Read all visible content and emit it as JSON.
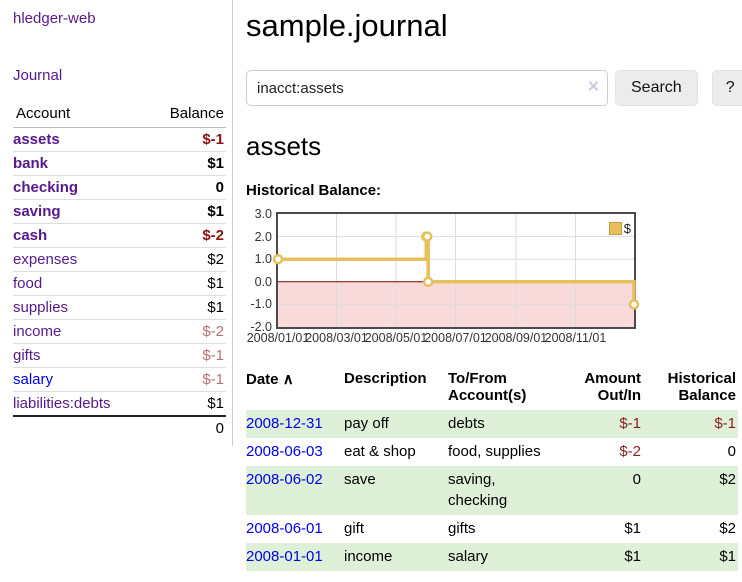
{
  "app": {
    "title": "hledger-web"
  },
  "sidebar": {
    "journal_link": "Journal",
    "accounts": {
      "headers": {
        "account": "Account",
        "balance": "Balance"
      },
      "rows": [
        {
          "name": "assets",
          "balance": "$-1"
        },
        {
          "name": "bank",
          "balance": "$1"
        },
        {
          "name": "checking",
          "balance": "0"
        },
        {
          "name": "saving",
          "balance": "$1"
        },
        {
          "name": "cash",
          "balance": "$-2"
        },
        {
          "name": "expenses",
          "balance": "$2"
        },
        {
          "name": "food",
          "balance": "$1"
        },
        {
          "name": "supplies",
          "balance": "$1"
        },
        {
          "name": "income",
          "balance": "$-2"
        },
        {
          "name": "gifts",
          "balance": "$-1"
        },
        {
          "name": "salary",
          "balance": "$-1"
        },
        {
          "name": "liabilities:debts",
          "balance": "$1"
        }
      ],
      "total": "0"
    }
  },
  "main": {
    "title": "sample.journal",
    "search": {
      "value": "inacct:assets",
      "clear_icon": "×",
      "button_label": "Search",
      "help_label": "?"
    },
    "account_heading": "assets",
    "chart_title": "Historical Balance:",
    "register": {
      "headers": {
        "date": "Date",
        "sort_icon": "∧",
        "description": "Description",
        "tofrom": "To/From Account(s)",
        "amount": "Amount Out/In",
        "balance": "Historical Balance"
      },
      "rows": [
        {
          "date": "2008-12-31",
          "description": "pay off",
          "tofrom": "debts",
          "amount": "$-1",
          "balance": "$-1"
        },
        {
          "date": "2008-06-03",
          "description": "eat & shop",
          "tofrom": "food, supplies",
          "amount": "$-2",
          "balance": "0"
        },
        {
          "date": "2008-06-02",
          "description": "save",
          "tofrom": "saving, checking",
          "amount": "0",
          "balance": "$2"
        },
        {
          "date": "2008-06-01",
          "description": "gift",
          "tofrom": "gifts",
          "amount": "$1",
          "balance": "$2"
        },
        {
          "date": "2008-01-01",
          "description": "income",
          "tofrom": "salary",
          "amount": "$1",
          "balance": "$1"
        }
      ]
    }
  },
  "chart_data": {
    "type": "line",
    "title": "Historical Balance:",
    "legend": [
      "$"
    ],
    "legend_position": "top-right",
    "grid": true,
    "step": true,
    "xlim": [
      "2008-01-01",
      "2008-12-31"
    ],
    "ylim": [
      -2,
      3
    ],
    "y_ticks": [
      "3.0",
      "2.0",
      "1.0",
      "0.0",
      "-1.0",
      "-2.0"
    ],
    "x_ticks": [
      "2008/01/01",
      "2008/03/01",
      "2008/05/01",
      "2008/07/01",
      "2008/09/01",
      "2008/11/01"
    ],
    "series": [
      {
        "name": "$",
        "points": [
          {
            "x": "2008-01-01",
            "y": 1
          },
          {
            "x": "2008-06-01",
            "y": 2
          },
          {
            "x": "2008-06-02",
            "y": 2
          },
          {
            "x": "2008-06-03",
            "y": 0
          },
          {
            "x": "2008-12-31",
            "y": -1
          }
        ]
      }
    ],
    "colors": {
      "line": "#e6c05c",
      "marker_fill": "#ffffff",
      "negative_region": "#f9dada",
      "zero_line": "#7d0000",
      "gridline": "#dddddd"
    }
  }
}
